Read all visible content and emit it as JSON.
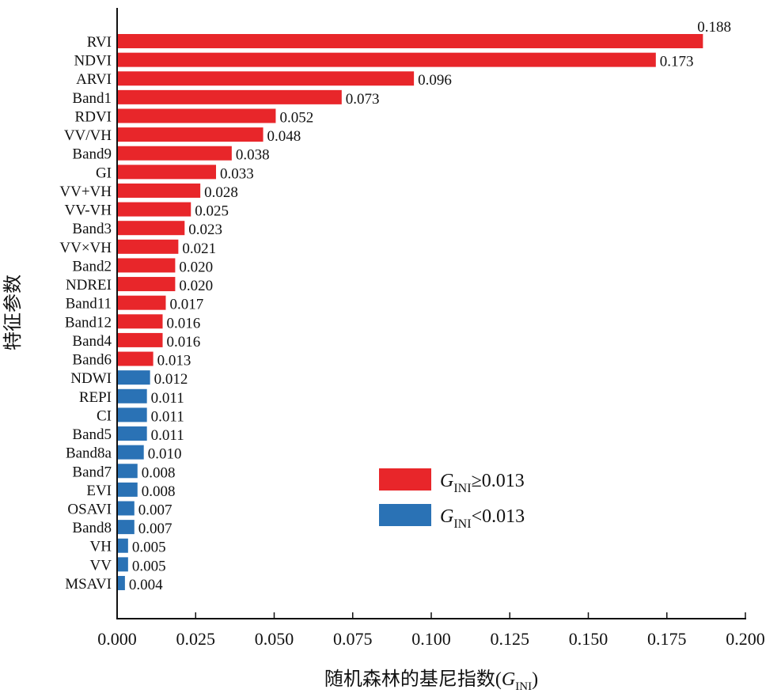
{
  "chart_data": {
    "type": "bar",
    "orientation": "horizontal",
    "categories": [
      "RVI",
      "NDVI",
      "ARVI",
      "Band1",
      "RDVI",
      "VV/VH",
      "Band9",
      "GI",
      "VV+VH",
      "VV-VH",
      "Band3",
      "VV×VH",
      "Band2",
      "NDREI",
      "Band11",
      "Band12",
      "Band4",
      "Band6",
      "NDWI",
      "REPI",
      "CI",
      "Band5",
      "Band8a",
      "Band7",
      "EVI",
      "OSAVI",
      "Band8",
      "VH",
      "VV",
      "MSAVI"
    ],
    "values": [
      0.188,
      0.173,
      0.096,
      0.073,
      0.052,
      0.048,
      0.038,
      0.033,
      0.028,
      0.025,
      0.023,
      0.021,
      0.02,
      0.02,
      0.017,
      0.016,
      0.016,
      0.013,
      0.012,
      0.011,
      0.011,
      0.011,
      0.01,
      0.008,
      0.008,
      0.007,
      0.007,
      0.005,
      0.005,
      0.004
    ],
    "value_labels": [
      "0.188",
      "0.173",
      "0.096",
      "0.073",
      "0.052",
      "0.048",
      "0.038",
      "0.033",
      "0.028",
      "0.025",
      "0.023",
      "0.021",
      "0.020",
      "0.020",
      "0.017",
      "0.016",
      "0.016",
      "0.013",
      "0.012",
      "0.011",
      "0.011",
      "0.011",
      "0.010",
      "0.008",
      "0.008",
      "0.007",
      "0.007",
      "0.005",
      "0.005",
      "0.004"
    ],
    "threshold": 0.013,
    "colors": {
      "high": "#e8262a",
      "low": "#2a72b5"
    },
    "xlim": [
      0,
      0.2
    ],
    "xticks": [
      "0.000",
      "0.025",
      "0.050",
      "0.075",
      "0.100",
      "0.125",
      "0.150",
      "0.175",
      "0.200"
    ],
    "ylabel": "特征参数",
    "xlabel": {
      "prefix": "随机森林的基尼指数(",
      "symbol": "G",
      "subscript": "INI",
      "suffix": ")"
    },
    "legend": {
      "placement": "center-right",
      "entries": [
        {
          "symbol": "G",
          "subscript": "INI",
          "text": "≥0.013",
          "color": "#e8262a"
        },
        {
          "symbol": "G",
          "subscript": "INI",
          "text": "<0.013",
          "color": "#2a72b5"
        }
      ]
    },
    "grid": false
  }
}
